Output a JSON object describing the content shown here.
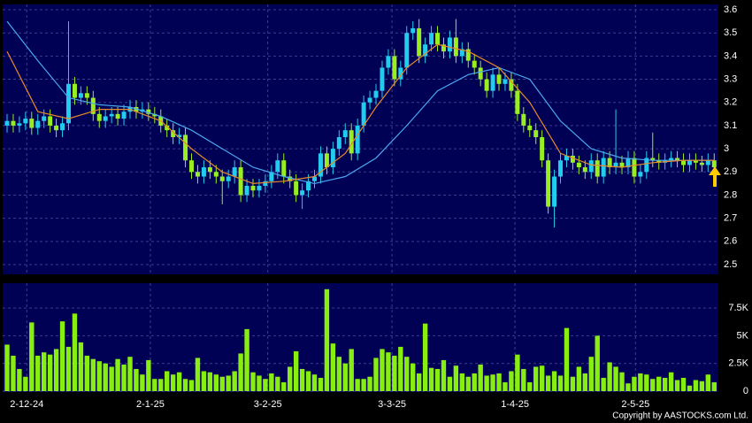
{
  "chart_data": {
    "type": "candlestick",
    "open": [
      3.1,
      3.12,
      3.1,
      3.11,
      3.13,
      3.09,
      3.12,
      3.14,
      3.1,
      3.08,
      3.11,
      3.28,
      3.22,
      3.24,
      3.22,
      3.15,
      3.12,
      3.14,
      3.15,
      3.13,
      3.16,
      3.18,
      3.16,
      3.17,
      3.15,
      3.14,
      3.1,
      3.08,
      3.05,
      3.06,
      2.95,
      2.9,
      2.88,
      2.92,
      2.9,
      2.88,
      2.86,
      2.88,
      2.92,
      2.8,
      2.84,
      2.82,
      2.84,
      2.86,
      2.9,
      2.95,
      2.88,
      2.86,
      2.8,
      2.82,
      2.86,
      2.88,
      2.98,
      2.92,
      3.0,
      3.05,
      3.08,
      2.98,
      3.1,
      3.2,
      3.22,
      3.25,
      3.35,
      3.4,
      3.3,
      3.35,
      3.5,
      3.52,
      3.4,
      3.45,
      3.5,
      3.45,
      3.42,
      3.48,
      3.4,
      3.43,
      3.38,
      3.35,
      3.3,
      3.25,
      3.32,
      3.28,
      3.3,
      3.25,
      3.15,
      3.1,
      3.08,
      3.05,
      2.95,
      2.75,
      2.88,
      2.95,
      2.97,
      2.94,
      2.92,
      2.9,
      2.95,
      2.88,
      2.96,
      2.92,
      2.94,
      2.92,
      2.96,
      2.88,
      2.9,
      2.96,
      2.95,
      2.94,
      2.95,
      2.96,
      2.95,
      2.93,
      2.95,
      2.94,
      2.93,
      2.95
    ],
    "high": [
      3.15,
      3.15,
      3.14,
      3.16,
      3.16,
      3.15,
      3.17,
      3.17,
      3.13,
      3.14,
      3.55,
      3.31,
      3.27,
      3.27,
      3.25,
      3.18,
      3.17,
      3.18,
      3.18,
      3.19,
      3.21,
      3.21,
      3.2,
      3.2,
      3.18,
      3.17,
      3.13,
      3.11,
      3.09,
      3.09,
      2.98,
      2.93,
      2.95,
      2.95,
      2.93,
      2.91,
      2.91,
      2.95,
      2.95,
      2.87,
      2.87,
      2.87,
      2.89,
      2.93,
      2.98,
      2.98,
      2.91,
      2.89,
      2.85,
      2.89,
      2.91,
      3.01,
      3.01,
      3.03,
      3.08,
      3.11,
      3.11,
      3.13,
      3.23,
      3.25,
      3.28,
      3.38,
      3.43,
      3.43,
      3.38,
      3.53,
      3.55,
      3.56,
      3.48,
      3.53,
      3.53,
      3.48,
      3.51,
      3.56,
      3.46,
      3.46,
      3.41,
      3.38,
      3.33,
      3.35,
      3.35,
      3.33,
      3.33,
      3.28,
      3.18,
      3.13,
      3.11,
      3.08,
      2.98,
      2.91,
      2.98,
      3.0,
      3.0,
      2.97,
      2.95,
      2.98,
      2.98,
      2.99,
      2.99,
      3.17,
      2.97,
      2.99,
      2.99,
      2.93,
      2.99,
      3.07,
      2.98,
      2.98,
      2.99,
      2.99,
      2.98,
      2.98,
      2.98,
      2.97,
      2.98,
      2.98
    ],
    "low": [
      3.07,
      3.07,
      3.07,
      3.08,
      3.06,
      3.06,
      3.09,
      3.07,
      3.05,
      3.05,
      3.08,
      3.19,
      3.19,
      3.19,
      3.12,
      3.09,
      3.09,
      3.11,
      3.1,
      3.1,
      3.13,
      3.13,
      3.13,
      3.12,
      3.11,
      3.07,
      3.05,
      3.02,
      3.02,
      2.92,
      2.87,
      2.85,
      2.85,
      2.87,
      2.85,
      2.76,
      2.83,
      2.85,
      2.77,
      2.77,
      2.79,
      2.79,
      2.81,
      2.83,
      2.87,
      2.85,
      2.83,
      2.77,
      2.74,
      2.79,
      2.83,
      2.85,
      2.89,
      2.89,
      2.97,
      3.02,
      2.95,
      2.95,
      3.07,
      3.17,
      3.19,
      3.22,
      3.32,
      3.27,
      3.27,
      3.32,
      3.47,
      3.37,
      3.37,
      3.42,
      3.42,
      3.39,
      3.39,
      3.37,
      3.37,
      3.35,
      3.32,
      3.27,
      3.22,
      3.22,
      3.25,
      3.25,
      3.22,
      3.12,
      3.07,
      3.05,
      3.02,
      2.92,
      2.72,
      2.66,
      2.85,
      2.92,
      2.91,
      2.89,
      2.87,
      2.87,
      2.85,
      2.85,
      2.89,
      2.89,
      2.89,
      2.89,
      2.85,
      2.85,
      2.87,
      2.92,
      2.91,
      2.91,
      2.92,
      2.92,
      2.9,
      2.9,
      2.91,
      2.9,
      2.9,
      2.89
    ],
    "close": [
      3.12,
      3.1,
      3.11,
      3.13,
      3.09,
      3.12,
      3.14,
      3.1,
      3.08,
      3.11,
      3.28,
      3.22,
      3.24,
      3.22,
      3.15,
      3.12,
      3.14,
      3.15,
      3.13,
      3.16,
      3.18,
      3.16,
      3.17,
      3.15,
      3.14,
      3.1,
      3.08,
      3.05,
      3.06,
      2.95,
      2.9,
      2.88,
      2.92,
      2.9,
      2.88,
      2.86,
      2.88,
      2.92,
      2.8,
      2.84,
      2.82,
      2.84,
      2.86,
      2.9,
      2.95,
      2.88,
      2.86,
      2.8,
      2.82,
      2.86,
      2.88,
      2.98,
      2.92,
      3.0,
      3.05,
      3.08,
      2.98,
      3.1,
      3.2,
      3.22,
      3.25,
      3.35,
      3.4,
      3.3,
      3.35,
      3.5,
      3.52,
      3.4,
      3.45,
      3.5,
      3.45,
      3.42,
      3.48,
      3.4,
      3.43,
      3.38,
      3.35,
      3.3,
      3.25,
      3.32,
      3.28,
      3.3,
      3.25,
      3.15,
      3.1,
      3.08,
      3.05,
      2.95,
      2.75,
      2.88,
      2.95,
      2.97,
      2.94,
      2.92,
      2.9,
      2.95,
      2.88,
      2.96,
      2.92,
      2.94,
      2.92,
      2.96,
      2.88,
      2.9,
      2.96,
      2.95,
      2.94,
      2.95,
      2.96,
      2.95,
      2.93,
      2.95,
      2.94,
      2.93,
      2.95,
      2.92
    ],
    "color_up": "#22ccee",
    "color_down": "#99ee22",
    "ma_lines": [
      {
        "color": "#4aa8ee",
        "x": [
          0,
          5,
          10,
          15,
          20,
          25,
          30,
          35,
          40,
          45,
          50,
          55,
          60,
          65,
          70,
          75,
          80,
          85,
          90,
          95,
          100,
          105,
          110,
          115
        ],
        "values": [
          3.55,
          3.38,
          3.22,
          3.19,
          3.18,
          3.14,
          3.08,
          3.0,
          2.92,
          2.88,
          2.85,
          2.88,
          2.96,
          3.1,
          3.25,
          3.32,
          3.35,
          3.3,
          3.12,
          3.0,
          2.96,
          2.95,
          2.95,
          2.95
        ]
      },
      {
        "color": "#e88a2a",
        "x": [
          0,
          5,
          10,
          15,
          20,
          25,
          30,
          35,
          40,
          45,
          50,
          55,
          60,
          65,
          70,
          75,
          80,
          85,
          90,
          95,
          100,
          105,
          110,
          115
        ],
        "values": [
          3.42,
          3.16,
          3.13,
          3.17,
          3.17,
          3.12,
          3.0,
          2.9,
          2.85,
          2.86,
          2.88,
          2.98,
          3.18,
          3.35,
          3.45,
          3.42,
          3.35,
          3.2,
          2.98,
          2.93,
          2.92,
          2.94,
          2.95,
          2.95
        ]
      }
    ],
    "volume": {
      "color": "#88ee11",
      "values": [
        4200,
        3200,
        2000,
        1300,
        6200,
        3200,
        3500,
        3300,
        3800,
        6300,
        4000,
        7000,
        4400,
        3200,
        2900,
        2700,
        2500,
        2200,
        2900,
        2400,
        3100,
        2000,
        1500,
        2800,
        1100,
        1100,
        1800,
        1500,
        1700,
        1100,
        1000,
        3000,
        1800,
        1700,
        1500,
        1300,
        1400,
        1800,
        3400,
        5600,
        1700,
        1400,
        1100,
        1600,
        1300,
        800,
        2200,
        3600,
        2000,
        1800,
        1500,
        1200,
        9200,
        4300,
        3100,
        2500,
        3800,
        1100,
        1100,
        1300,
        3000,
        3800,
        3500,
        3200,
        4000,
        3100,
        2500,
        1600,
        6100,
        2100,
        2000,
        2800,
        1300,
        2300,
        1600,
        1300,
        1600,
        2400,
        1400,
        1500,
        1600,
        800,
        1800,
        3300,
        2000,
        800,
        2200,
        2300,
        1400,
        1800,
        1400,
        5700,
        1300,
        2200,
        1600,
        3100,
        5000,
        1200,
        2600,
        2200,
        1700,
        700,
        1300,
        1600,
        1500,
        1100,
        1300,
        1200,
        1700,
        1000,
        1200,
        500,
        1000,
        900,
        1500,
        800
      ],
      "ylim": [
        0,
        9744
      ],
      "yticks": [
        0,
        {
          "value": 2500,
          "label": "2.5K"
        },
        {
          "value": 5000,
          "label": "5K"
        },
        {
          "value": 7500,
          "label": "7.5K"
        }
      ]
    },
    "xlim": [
      -0.72,
      115.68
    ],
    "xticks": [
      {
        "value": 3.2,
        "label": "2-12-24"
      },
      {
        "value": 23.3,
        "label": "2-1-25"
      },
      {
        "value": 42.4,
        "label": "3-2-25"
      },
      {
        "value": 62.6,
        "label": "3-3-25"
      },
      {
        "value": 82.6,
        "label": "1-4-25"
      },
      {
        "value": 102.2,
        "label": "2-5-25"
      }
    ],
    "ylim": [
      2.458,
      3.623
    ],
    "yticks": [
      2.5,
      2.6,
      2.7,
      2.8,
      2.9,
      3,
      3.1,
      3.2,
      3.3,
      3.4,
      3.5,
      3.6
    ],
    "grid": true,
    "copyright": "Copyright by AASTOCKS.com Ltd."
  }
}
